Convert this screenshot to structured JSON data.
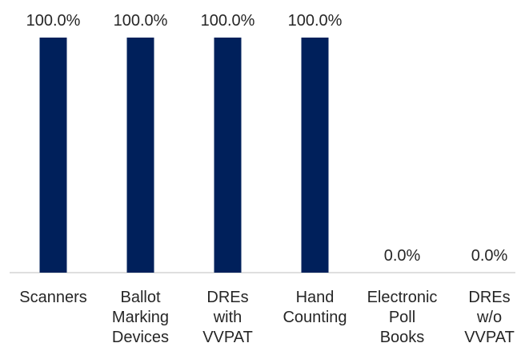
{
  "chart_data": {
    "type": "bar",
    "categories": [
      "Scanners",
      "Ballot Marking Devices",
      "DREs with VVPAT",
      "Hand Counting",
      "Electronic Poll Books",
      "DREs w/o VVPAT"
    ],
    "category_lines": [
      [
        "Scanners"
      ],
      [
        "Ballot",
        "Marking",
        "Devices"
      ],
      [
        "DREs",
        "with",
        "VVPAT"
      ],
      [
        "Hand",
        "Counting"
      ],
      [
        "Electronic",
        "Poll",
        "Books"
      ],
      [
        "DREs",
        "w/o",
        "VVPAT"
      ]
    ],
    "values": [
      100.0,
      100.0,
      100.0,
      100.0,
      0.0,
      0.0
    ],
    "data_labels": [
      "100.0%",
      "100.0%",
      "100.0%",
      "100.0%",
      "0.0%",
      "0.0%"
    ],
    "ylim": [
      0,
      100
    ],
    "grid": false,
    "legend": "none",
    "bar_color": "#00205b"
  }
}
